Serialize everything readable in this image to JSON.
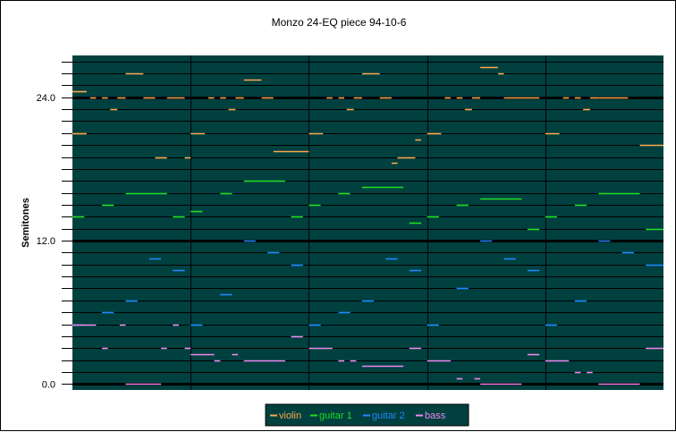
{
  "chart_data": {
    "type": "line",
    "title": "Monzo 24-EQ piece 94-10-6",
    "xlabel": "",
    "ylabel": "Semitones",
    "ylim": [
      -0.5,
      27.5
    ],
    "xlim": [
      0,
      50
    ],
    "yticks": [
      {
        "value": 0,
        "label": "0.0"
      },
      {
        "value": 12,
        "label": "12.0"
      },
      {
        "value": 24,
        "label": "24.0"
      }
    ],
    "bar_dividers": [
      10,
      20,
      30,
      40
    ],
    "grid": true,
    "legend_position": "bottom",
    "colors": {
      "plot_bg": "#00403f",
      "grid": "#000000",
      "violin": "#ffa64d",
      "guitar 1": "#22dd22",
      "guitar 2": "#2288ff",
      "bass": "#ee88ee"
    },
    "series": [
      {
        "name": "violin",
        "notes": [
          [
            0,
            1.2,
            24.5
          ],
          [
            1.5,
            2,
            24
          ],
          [
            2.5,
            3,
            24
          ],
          [
            3.2,
            3.8,
            23
          ],
          [
            3.8,
            4.5,
            24
          ],
          [
            4.5,
            6,
            26
          ],
          [
            6,
            7,
            24
          ],
          [
            7,
            8,
            19
          ],
          [
            8,
            9.5,
            24
          ],
          [
            9.5,
            10,
            19
          ],
          [
            0,
            1.2,
            21
          ],
          [
            10,
            11.2,
            21
          ],
          [
            11.5,
            12,
            24
          ],
          [
            12.5,
            13,
            24
          ],
          [
            13.2,
            13.8,
            23
          ],
          [
            13.8,
            14.5,
            24
          ],
          [
            14.5,
            16,
            25.5
          ],
          [
            16,
            17,
            24
          ],
          [
            17,
            20,
            19.5
          ],
          [
            20,
            21.2,
            21
          ],
          [
            21.5,
            22,
            24
          ],
          [
            22.5,
            23,
            24
          ],
          [
            23.2,
            23.8,
            23
          ],
          [
            23.8,
            24.5,
            24
          ],
          [
            24.5,
            26,
            26
          ],
          [
            26,
            27,
            24
          ],
          [
            27,
            27.5,
            18.5
          ],
          [
            27.5,
            29,
            19
          ],
          [
            29,
            29.5,
            20.5
          ],
          [
            30,
            31.2,
            21
          ],
          [
            31.5,
            32,
            24
          ],
          [
            32.5,
            33,
            24
          ],
          [
            33.2,
            33.8,
            23
          ],
          [
            33.8,
            34.5,
            24
          ],
          [
            34.5,
            36,
            26.5
          ],
          [
            36,
            36.5,
            26
          ],
          [
            36.5,
            39.5,
            24
          ],
          [
            40,
            41.2,
            21
          ],
          [
            41.5,
            42,
            24
          ],
          [
            42.5,
            43,
            24
          ],
          [
            43.2,
            43.8,
            23
          ],
          [
            43.8,
            44.5,
            24
          ],
          [
            44.5,
            47,
            24
          ],
          [
            48,
            50,
            20
          ]
        ]
      },
      {
        "name": "guitar 1",
        "notes": [
          [
            0,
            1,
            14
          ],
          [
            2.5,
            3.5,
            15
          ],
          [
            4.5,
            8,
            16
          ],
          [
            8.5,
            9.5,
            14
          ],
          [
            10,
            11,
            14.5
          ],
          [
            12.5,
            13.5,
            16
          ],
          [
            14.5,
            18,
            17
          ],
          [
            18.5,
            19.5,
            14
          ],
          [
            20,
            21,
            15
          ],
          [
            22.5,
            23.5,
            16
          ],
          [
            24.5,
            28,
            16.5
          ],
          [
            28.5,
            29.5,
            13.5
          ],
          [
            30,
            31,
            14
          ],
          [
            32.5,
            33.5,
            15
          ],
          [
            34.5,
            38,
            15.5
          ],
          [
            38.5,
            39.5,
            13
          ],
          [
            40,
            41,
            14
          ],
          [
            42.5,
            43.5,
            15
          ],
          [
            44.5,
            48,
            16
          ],
          [
            48.5,
            50,
            13
          ]
        ]
      },
      {
        "name": "guitar 2",
        "notes": [
          [
            0,
            1,
            5
          ],
          [
            2.5,
            3.5,
            6
          ],
          [
            4.5,
            5.5,
            7
          ],
          [
            6.5,
            7.5,
            10.5
          ],
          [
            8.5,
            9.5,
            9.5
          ],
          [
            10,
            11,
            5
          ],
          [
            12.5,
            13.5,
            7.5
          ],
          [
            14.5,
            15.5,
            12
          ],
          [
            16.5,
            17.5,
            11
          ],
          [
            18.5,
            19.5,
            10
          ],
          [
            20,
            21,
            5
          ],
          [
            22.5,
            23.5,
            6
          ],
          [
            24.5,
            25.5,
            7
          ],
          [
            26.5,
            27.5,
            10.5
          ],
          [
            28.5,
            29.5,
            9.5
          ],
          [
            30,
            31,
            5
          ],
          [
            32.5,
            33.5,
            8
          ],
          [
            34.5,
            35.5,
            12
          ],
          [
            36.5,
            37.5,
            10.5
          ],
          [
            38.5,
            39.5,
            9.5
          ],
          [
            40,
            41,
            5
          ],
          [
            42.5,
            43.5,
            7
          ],
          [
            44.5,
            45.5,
            12
          ],
          [
            46.5,
            47.5,
            11
          ],
          [
            48.5,
            50,
            10
          ]
        ]
      },
      {
        "name": "bass",
        "notes": [
          [
            0,
            2,
            5
          ],
          [
            2.5,
            3,
            3
          ],
          [
            4,
            4.5,
            5
          ],
          [
            4.5,
            7.5,
            0
          ],
          [
            7.5,
            8,
            3
          ],
          [
            8.5,
            9,
            5
          ],
          [
            9.5,
            10,
            3
          ],
          [
            10,
            12,
            2.5
          ],
          [
            12,
            12.5,
            2
          ],
          [
            13.5,
            14,
            2.5
          ],
          [
            14.5,
            18,
            2
          ],
          [
            18.5,
            19.5,
            4
          ],
          [
            20,
            22,
            3
          ],
          [
            22.5,
            23,
            2
          ],
          [
            23.5,
            24,
            2
          ],
          [
            24.5,
            28,
            1.5
          ],
          [
            28.5,
            29.5,
            3
          ],
          [
            30,
            32,
            2
          ],
          [
            32.5,
            33,
            0.5
          ],
          [
            34,
            34.5,
            0.5
          ],
          [
            34.5,
            38,
            0
          ],
          [
            38.5,
            39.5,
            2.5
          ],
          [
            40,
            42,
            2
          ],
          [
            42.5,
            43,
            1
          ],
          [
            43.5,
            44,
            1
          ],
          [
            44.5,
            48,
            0
          ],
          [
            48.5,
            50,
            3
          ]
        ]
      }
    ]
  }
}
